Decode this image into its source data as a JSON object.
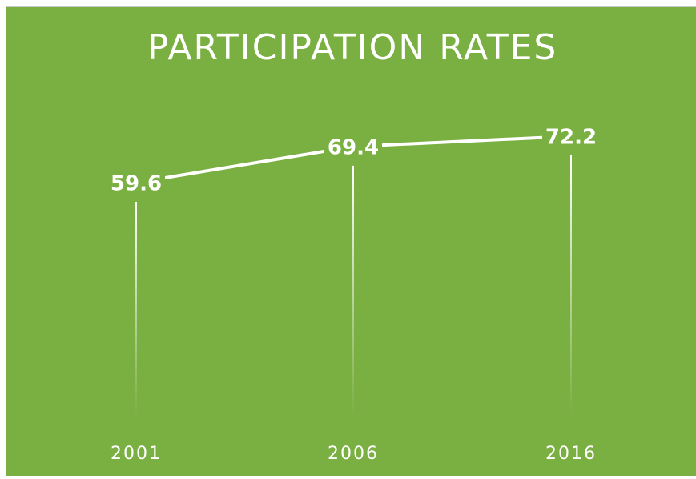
{
  "chart_data": {
    "type": "line",
    "title": "PARTICIPATION RATES",
    "categories": [
      "2001",
      "2006",
      "2016"
    ],
    "series": [
      {
        "name": null,
        "color": "#ffffff",
        "values": [
          59.6,
          69.4,
          72.2
        ]
      }
    ]
  }
}
